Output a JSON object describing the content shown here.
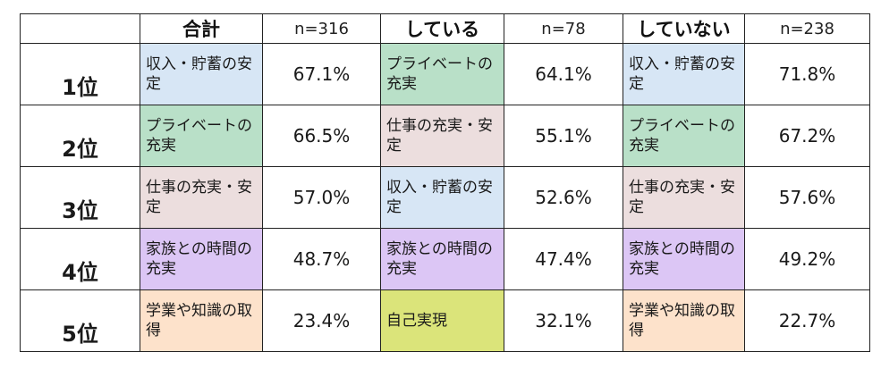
{
  "colors": {
    "income_savings": "#d7e6f5",
    "private_life": "#b9e0c8",
    "work": "#ecdede",
    "family_time": "#dcc6f5",
    "study": "#fde2cb",
    "self_realization": "#dbe47a"
  },
  "header": {
    "blank": "",
    "total_label": "合計",
    "total_n": "n=316",
    "doing_label": "している",
    "doing_n": "n=78",
    "not_doing_label": "していない",
    "not_doing_n": "n=238"
  },
  "rows": [
    {
      "rank": "1位",
      "total": {
        "item": "収入・貯蓄の安定",
        "pct": "67.1%"
      },
      "doing": {
        "item": "プライベートの充実",
        "pct": "64.1%"
      },
      "not_doing": {
        "item": "収入・貯蓄の安定",
        "pct": "71.8%"
      }
    },
    {
      "rank": "2位",
      "total": {
        "item": "プライベートの充実",
        "pct": "66.5%"
      },
      "doing": {
        "item": "仕事の充実・安定",
        "pct": "55.1%"
      },
      "not_doing": {
        "item": "プライベートの充実",
        "pct": "67.2%"
      }
    },
    {
      "rank": "3位",
      "total": {
        "item": "仕事の充実・安定",
        "pct": "57.0%"
      },
      "doing": {
        "item": "収入・貯蓄の安定",
        "pct": "52.6%"
      },
      "not_doing": {
        "item": "仕事の充実・安定",
        "pct": "57.6%"
      }
    },
    {
      "rank": "4位",
      "total": {
        "item": "家族との時間の充実",
        "pct": "48.7%"
      },
      "doing": {
        "item": "家族との時間の充実",
        "pct": "47.4%"
      },
      "not_doing": {
        "item": "家族との時間の充実",
        "pct": "49.2%"
      }
    },
    {
      "rank": "5位",
      "total": {
        "item": "学業や知識の取得",
        "pct": "23.4%"
      },
      "doing": {
        "item": "自己実現",
        "pct": "32.1%"
      },
      "not_doing": {
        "item": "学業や知識の取得",
        "pct": "22.7%"
      }
    }
  ]
}
